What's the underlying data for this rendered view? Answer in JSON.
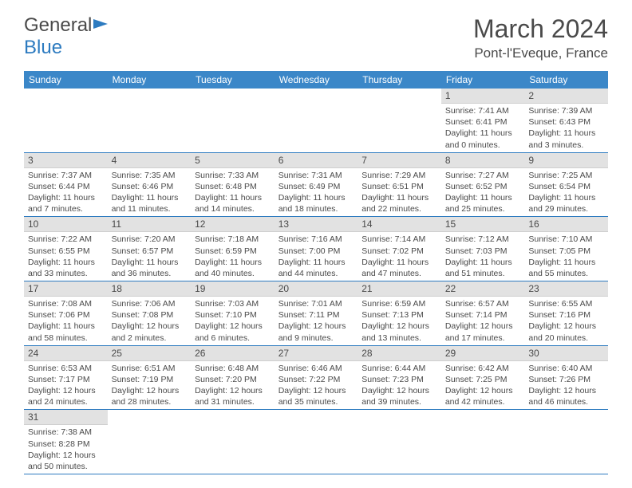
{
  "logo": {
    "part1": "General",
    "part2": "Blue"
  },
  "title": "March 2024",
  "location": "Pont-l'Eveque, France",
  "headers": [
    "Sunday",
    "Monday",
    "Tuesday",
    "Wednesday",
    "Thursday",
    "Friday",
    "Saturday"
  ],
  "header_bg": "#3b87c8",
  "header_fg": "#ffffff",
  "daynum_bg": "#e2e2e2",
  "border_color": "#2d7bc0",
  "text_color": "#4a4a4a",
  "accent_color": "#2d7bc0",
  "weeks": [
    [
      null,
      null,
      null,
      null,
      null,
      {
        "n": "1",
        "sr": "7:41 AM",
        "ss": "6:41 PM",
        "dl": "11 hours and 0 minutes."
      },
      {
        "n": "2",
        "sr": "7:39 AM",
        "ss": "6:43 PM",
        "dl": "11 hours and 3 minutes."
      }
    ],
    [
      {
        "n": "3",
        "sr": "7:37 AM",
        "ss": "6:44 PM",
        "dl": "11 hours and 7 minutes."
      },
      {
        "n": "4",
        "sr": "7:35 AM",
        "ss": "6:46 PM",
        "dl": "11 hours and 11 minutes."
      },
      {
        "n": "5",
        "sr": "7:33 AM",
        "ss": "6:48 PM",
        "dl": "11 hours and 14 minutes."
      },
      {
        "n": "6",
        "sr": "7:31 AM",
        "ss": "6:49 PM",
        "dl": "11 hours and 18 minutes."
      },
      {
        "n": "7",
        "sr": "7:29 AM",
        "ss": "6:51 PM",
        "dl": "11 hours and 22 minutes."
      },
      {
        "n": "8",
        "sr": "7:27 AM",
        "ss": "6:52 PM",
        "dl": "11 hours and 25 minutes."
      },
      {
        "n": "9",
        "sr": "7:25 AM",
        "ss": "6:54 PM",
        "dl": "11 hours and 29 minutes."
      }
    ],
    [
      {
        "n": "10",
        "sr": "7:22 AM",
        "ss": "6:55 PM",
        "dl": "11 hours and 33 minutes."
      },
      {
        "n": "11",
        "sr": "7:20 AM",
        "ss": "6:57 PM",
        "dl": "11 hours and 36 minutes."
      },
      {
        "n": "12",
        "sr": "7:18 AM",
        "ss": "6:59 PM",
        "dl": "11 hours and 40 minutes."
      },
      {
        "n": "13",
        "sr": "7:16 AM",
        "ss": "7:00 PM",
        "dl": "11 hours and 44 minutes."
      },
      {
        "n": "14",
        "sr": "7:14 AM",
        "ss": "7:02 PM",
        "dl": "11 hours and 47 minutes."
      },
      {
        "n": "15",
        "sr": "7:12 AM",
        "ss": "7:03 PM",
        "dl": "11 hours and 51 minutes."
      },
      {
        "n": "16",
        "sr": "7:10 AM",
        "ss": "7:05 PM",
        "dl": "11 hours and 55 minutes."
      }
    ],
    [
      {
        "n": "17",
        "sr": "7:08 AM",
        "ss": "7:06 PM",
        "dl": "11 hours and 58 minutes."
      },
      {
        "n": "18",
        "sr": "7:06 AM",
        "ss": "7:08 PM",
        "dl": "12 hours and 2 minutes."
      },
      {
        "n": "19",
        "sr": "7:03 AM",
        "ss": "7:10 PM",
        "dl": "12 hours and 6 minutes."
      },
      {
        "n": "20",
        "sr": "7:01 AM",
        "ss": "7:11 PM",
        "dl": "12 hours and 9 minutes."
      },
      {
        "n": "21",
        "sr": "6:59 AM",
        "ss": "7:13 PM",
        "dl": "12 hours and 13 minutes."
      },
      {
        "n": "22",
        "sr": "6:57 AM",
        "ss": "7:14 PM",
        "dl": "12 hours and 17 minutes."
      },
      {
        "n": "23",
        "sr": "6:55 AM",
        "ss": "7:16 PM",
        "dl": "12 hours and 20 minutes."
      }
    ],
    [
      {
        "n": "24",
        "sr": "6:53 AM",
        "ss": "7:17 PM",
        "dl": "12 hours and 24 minutes."
      },
      {
        "n": "25",
        "sr": "6:51 AM",
        "ss": "7:19 PM",
        "dl": "12 hours and 28 minutes."
      },
      {
        "n": "26",
        "sr": "6:48 AM",
        "ss": "7:20 PM",
        "dl": "12 hours and 31 minutes."
      },
      {
        "n": "27",
        "sr": "6:46 AM",
        "ss": "7:22 PM",
        "dl": "12 hours and 35 minutes."
      },
      {
        "n": "28",
        "sr": "6:44 AM",
        "ss": "7:23 PM",
        "dl": "12 hours and 39 minutes."
      },
      {
        "n": "29",
        "sr": "6:42 AM",
        "ss": "7:25 PM",
        "dl": "12 hours and 42 minutes."
      },
      {
        "n": "30",
        "sr": "6:40 AM",
        "ss": "7:26 PM",
        "dl": "12 hours and 46 minutes."
      }
    ],
    [
      {
        "n": "31",
        "sr": "7:38 AM",
        "ss": "8:28 PM",
        "dl": "12 hours and 50 minutes."
      },
      null,
      null,
      null,
      null,
      null,
      null
    ]
  ],
  "labels": {
    "sunrise": "Sunrise: ",
    "sunset": "Sunset: ",
    "daylight": "Daylight: "
  }
}
